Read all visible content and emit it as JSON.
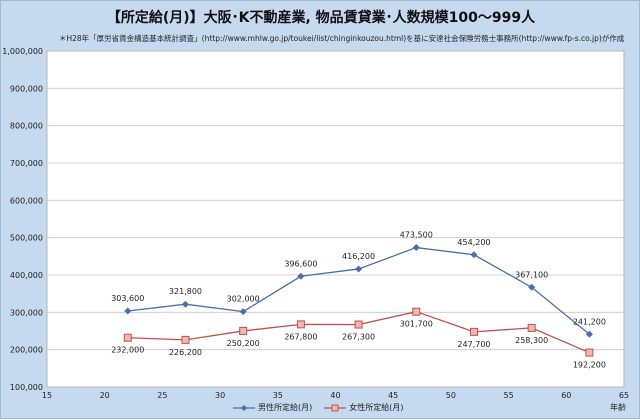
{
  "title": "【所定給(月)】大阪･K不動産業, 物品賃貸業･人数規模100～999人",
  "subtitle": "＊H28年「厚労省賃金構造基本統計調査」(http://www.mhlw.go.jp/toukei/list/chinginkouzou.html)を基に安達社会保険労務士事務所(http://www.fp-s.co.jp)が作成",
  "colors": {
    "background": "#c5d9ef",
    "plot": "#ffffff",
    "male": "#4a6fa5",
    "female": "#c0504d",
    "female_fill": "#f2b8b0"
  },
  "chart_data": {
    "type": "line",
    "title": "【所定給(月)】大阪･K不動産業, 物品賃貸業･人数規模100～999人",
    "xlabel": "年齢",
    "ylabel": "",
    "xlim": [
      15,
      65
    ],
    "ylim": [
      100000,
      1000000
    ],
    "x_ticks": [
      15,
      20,
      25,
      30,
      35,
      40,
      45,
      50,
      55,
      60,
      65
    ],
    "y_ticks": [
      100000,
      200000,
      300000,
      400000,
      500000,
      600000,
      700000,
      800000,
      900000,
      1000000
    ],
    "x_tick_labels": [
      "15",
      "20",
      "25",
      "30",
      "35",
      "40",
      "45",
      "50",
      "55",
      "60",
      "65"
    ],
    "y_tick_labels": [
      "100,000",
      "200,000",
      "300,000",
      "400,000",
      "500,000",
      "600,000",
      "700,000",
      "800,000",
      "900,000",
      "1,000,000"
    ],
    "grid": true,
    "legend_position": "bottom",
    "x": [
      22,
      27,
      32,
      37,
      42,
      47,
      52,
      57,
      62
    ],
    "series": [
      {
        "name": "男性所定給(月)",
        "values": [
          303600,
          321800,
          302000,
          396600,
          416200,
          473500,
          454200,
          367100,
          241200
        ],
        "labels": [
          "303,600",
          "321,800",
          "302,000",
          "396,600",
          "416,200",
          "473,500",
          "454,200",
          "367,100",
          "241,200"
        ]
      },
      {
        "name": "女性所定給(月)",
        "values": [
          232000,
          226200,
          250200,
          267800,
          267300,
          301700,
          247700,
          258300,
          192200
        ],
        "labels": [
          "232,000",
          "226,200",
          "250,200",
          "267,800",
          "267,300",
          "301,700",
          "247,700",
          "258,300",
          "192,200"
        ]
      }
    ]
  }
}
